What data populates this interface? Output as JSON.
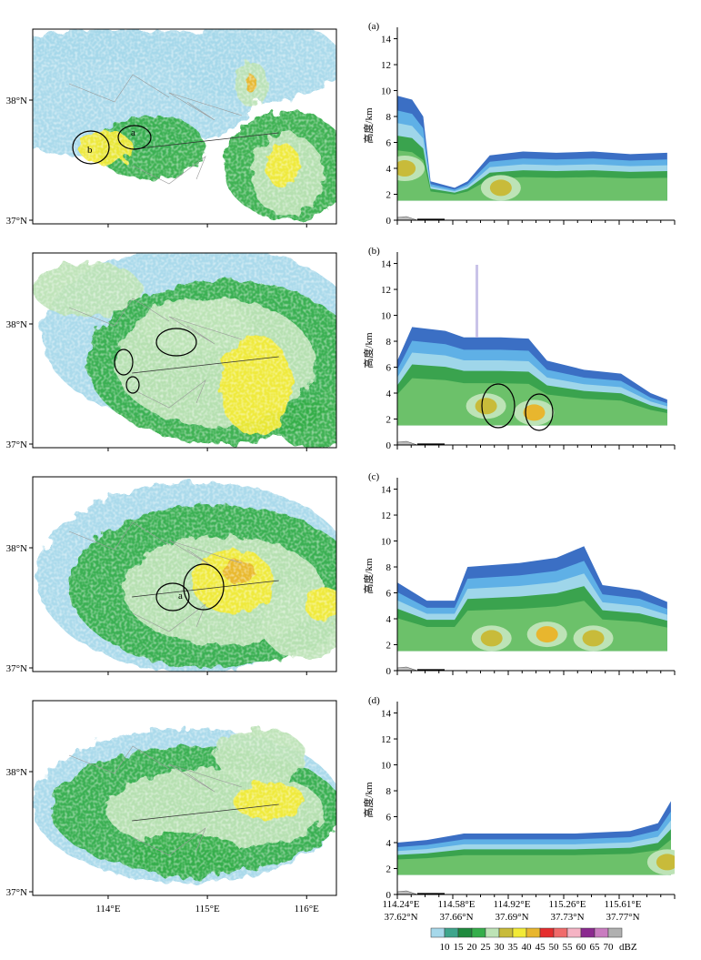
{
  "figure": {
    "panels": [
      {
        "label": "(a)"
      },
      {
        "label": "(b)"
      },
      {
        "label": "(c)"
      },
      {
        "label": "(d)"
      }
    ],
    "map": {
      "lat_ticks": [
        "38°N",
        "37°N"
      ],
      "lon_ticks": [
        "114°E",
        "115°E",
        "116°E"
      ]
    },
    "cross_section": {
      "ylabel": "高度/km",
      "yticks": [
        "0",
        "2",
        "4",
        "6",
        "8",
        "10",
        "12",
        "14"
      ],
      "xticks": [
        {
          "lon": "114.24°E",
          "lat": "37.62°N"
        },
        {
          "lon": "114.58°E",
          "lat": "37.66°N"
        },
        {
          "lon": "114.92°E",
          "lat": "37.69°N"
        },
        {
          "lon": "115.26°E",
          "lat": "37.73°N"
        },
        {
          "lon": "115.61°E",
          "lat": "37.77°N"
        }
      ]
    },
    "annotations": {
      "a": "a",
      "b": "b"
    },
    "colorbar": {
      "levels": [
        "10",
        "15",
        "20",
        "25",
        "30",
        "35",
        "40",
        "45",
        "50",
        "55",
        "60",
        "65",
        "70"
      ],
      "unit": "dBZ",
      "colors": [
        "#a6d8ea",
        "#3ea58c",
        "#1f8a3e",
        "#35ae4b",
        "#bde3b6",
        "#c8bb3a",
        "#f2ea36",
        "#e8b62e",
        "#e52e2e",
        "#f06b6b",
        "#f5b3c4",
        "#8b2a8f",
        "#c97cc0",
        "#b0b0b0"
      ]
    }
  },
  "chart_data": [
    {
      "type": "heatmap",
      "panel": "(a)",
      "description_values": {
        "ylim_km": [
          0,
          14
        ],
        "echo_top_profile_km": [
          [
            114.24,
            9.6
          ],
          [
            114.32,
            9.3
          ],
          [
            114.38,
            8.0
          ],
          [
            114.42,
            3.0
          ],
          [
            114.55,
            2.5
          ],
          [
            114.62,
            3.0
          ],
          [
            114.74,
            5.0
          ],
          [
            114.92,
            5.3
          ],
          [
            115.1,
            5.2
          ],
          [
            115.3,
            5.3
          ],
          [
            115.5,
            5.1
          ],
          [
            115.7,
            5.2
          ]
        ],
        "cores_dbz_max": [
          [
            114.28,
            4.0,
            35
          ],
          [
            114.8,
            2.5,
            30
          ]
        ]
      }
    },
    {
      "type": "heatmap",
      "panel": "(b)",
      "description_values": {
        "ylim_km": [
          0,
          14
        ],
        "echo_top_profile_km": [
          [
            114.24,
            6.5
          ],
          [
            114.32,
            9.1
          ],
          [
            114.5,
            8.8
          ],
          [
            114.6,
            8.3
          ],
          [
            114.8,
            8.3
          ],
          [
            114.95,
            8.2
          ],
          [
            115.05,
            6.5
          ],
          [
            115.25,
            5.8
          ],
          [
            115.45,
            5.5
          ],
          [
            115.61,
            4.0
          ],
          [
            115.7,
            3.5
          ]
        ],
        "cores_dbz_max": [
          [
            114.72,
            3.0,
            35
          ],
          [
            114.98,
            2.5,
            40
          ]
        ]
      }
    },
    {
      "type": "heatmap",
      "panel": "(c)",
      "description_values": {
        "ylim_km": [
          0,
          14
        ],
        "echo_top_profile_km": [
          [
            114.24,
            6.8
          ],
          [
            114.4,
            5.4
          ],
          [
            114.55,
            5.4
          ],
          [
            114.62,
            8.0
          ],
          [
            114.9,
            8.3
          ],
          [
            115.1,
            8.7
          ],
          [
            115.25,
            9.6
          ],
          [
            115.35,
            6.6
          ],
          [
            115.55,
            6.2
          ],
          [
            115.7,
            5.3
          ]
        ],
        "cores_dbz_max": [
          [
            114.75,
            2.5,
            35
          ],
          [
            115.05,
            2.8,
            40
          ],
          [
            115.3,
            2.5,
            35
          ]
        ]
      }
    },
    {
      "type": "heatmap",
      "panel": "(d)",
      "description_values": {
        "ylim_km": [
          0,
          14
        ],
        "echo_top_profile_km": [
          [
            114.24,
            4.0
          ],
          [
            114.4,
            4.2
          ],
          [
            114.6,
            4.7
          ],
          [
            114.9,
            4.7
          ],
          [
            115.2,
            4.7
          ],
          [
            115.5,
            4.9
          ],
          [
            115.65,
            5.5
          ],
          [
            115.72,
            7.2
          ]
        ],
        "cores_dbz_max": [
          [
            115.7,
            2.5,
            35
          ]
        ]
      }
    }
  ]
}
